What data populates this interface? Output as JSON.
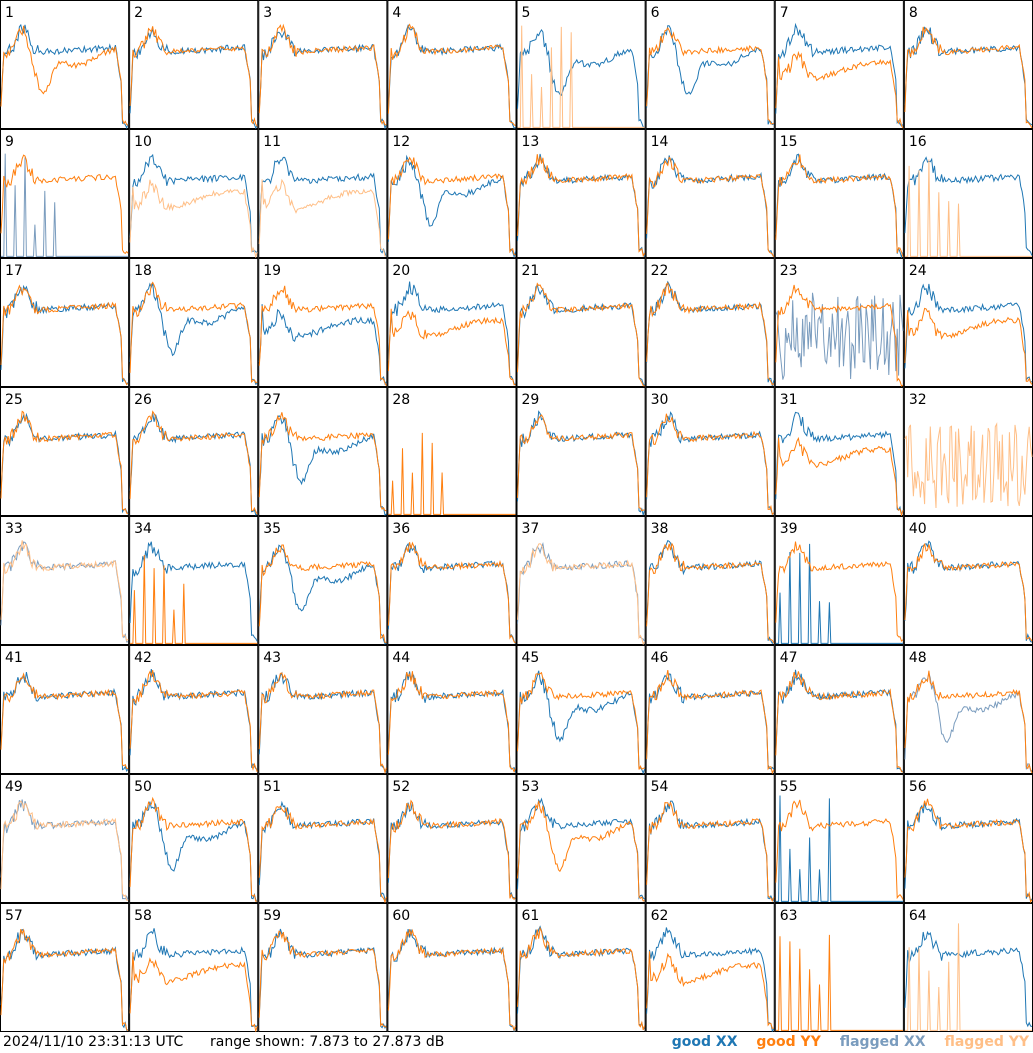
{
  "chart_data": {
    "type": "line",
    "grid": {
      "rows": 8,
      "cols": 8
    },
    "range_db": [
      7.873,
      27.873
    ],
    "panels": [
      {
        "id": "1",
        "xx": "good",
        "yy": "good",
        "shape": "spiky",
        "yy_shape": "dip"
      },
      {
        "id": "2",
        "xx": "good",
        "yy": "good",
        "shape": "normal",
        "yy_shape": "normal"
      },
      {
        "id": "3",
        "xx": "good",
        "yy": "good",
        "shape": "normal",
        "yy_shape": "normal"
      },
      {
        "id": "4",
        "xx": "good",
        "yy": "good",
        "shape": "normal",
        "yy_shape": "normal"
      },
      {
        "id": "5",
        "xx": "good",
        "yy": "flagged",
        "shape": "dip",
        "yy_shape": "spikes"
      },
      {
        "id": "6",
        "xx": "good",
        "yy": "good",
        "shape": "dip",
        "yy_shape": "normal"
      },
      {
        "id": "7",
        "xx": "good",
        "yy": "good",
        "shape": "normal",
        "yy_shape": "low"
      },
      {
        "id": "8",
        "xx": "good",
        "yy": "good",
        "shape": "normal",
        "yy_shape": "normal"
      },
      {
        "id": "9",
        "xx": "flagged",
        "yy": "good",
        "shape": "spikes",
        "yy_shape": "normal"
      },
      {
        "id": "10",
        "xx": "good",
        "yy": "flagged",
        "shape": "normal",
        "yy_shape": "low"
      },
      {
        "id": "11",
        "xx": "good",
        "yy": "flagged",
        "shape": "normal",
        "yy_shape": "low"
      },
      {
        "id": "12",
        "xx": "good",
        "yy": "good",
        "shape": "dip",
        "yy_shape": "normal"
      },
      {
        "id": "13",
        "xx": "good",
        "yy": "good",
        "shape": "normal",
        "yy_shape": "spiky"
      },
      {
        "id": "14",
        "xx": "good",
        "yy": "good",
        "shape": "normal",
        "yy_shape": "normal"
      },
      {
        "id": "15",
        "xx": "good",
        "yy": "good",
        "shape": "normal",
        "yy_shape": "normal"
      },
      {
        "id": "16",
        "xx": "good",
        "yy": "flagged",
        "shape": "normal",
        "yy_shape": "spikes"
      },
      {
        "id": "17",
        "xx": "good",
        "yy": "good",
        "shape": "normal",
        "yy_shape": "normal"
      },
      {
        "id": "18",
        "xx": "good",
        "yy": "good",
        "shape": "dip",
        "yy_shape": "normal"
      },
      {
        "id": "19",
        "xx": "good",
        "yy": "good",
        "shape": "low",
        "yy_shape": "normal"
      },
      {
        "id": "20",
        "xx": "good",
        "yy": "good",
        "shape": "normal",
        "yy_shape": "low"
      },
      {
        "id": "21",
        "xx": "good",
        "yy": "good",
        "shape": "normal",
        "yy_shape": "normal"
      },
      {
        "id": "22",
        "xx": "good",
        "yy": "good",
        "shape": "normal",
        "yy_shape": "normal"
      },
      {
        "id": "23",
        "xx": "flagged",
        "yy": "good",
        "shape": "noisy",
        "yy_shape": "normal"
      },
      {
        "id": "24",
        "xx": "good",
        "yy": "good",
        "shape": "normal",
        "yy_shape": "low"
      },
      {
        "id": "25",
        "xx": "good",
        "yy": "good",
        "shape": "normal",
        "yy_shape": "normal"
      },
      {
        "id": "26",
        "xx": "good",
        "yy": "good",
        "shape": "normal",
        "yy_shape": "normal"
      },
      {
        "id": "27",
        "xx": "good",
        "yy": "good",
        "shape": "dip",
        "yy_shape": "normal"
      },
      {
        "id": "28",
        "xx": "none",
        "yy": "good",
        "shape": "normal",
        "yy_shape": "spikes"
      },
      {
        "id": "29",
        "xx": "good",
        "yy": "good",
        "shape": "normal",
        "yy_shape": "normal"
      },
      {
        "id": "30",
        "xx": "good",
        "yy": "good",
        "shape": "normal",
        "yy_shape": "normal"
      },
      {
        "id": "31",
        "xx": "good",
        "yy": "good",
        "shape": "normal",
        "yy_shape": "low"
      },
      {
        "id": "32",
        "xx": "none",
        "yy": "flagged",
        "shape": "normal",
        "yy_shape": "noisy"
      },
      {
        "id": "33",
        "xx": "flagged",
        "yy": "flagged",
        "shape": "normal",
        "yy_shape": "normal"
      },
      {
        "id": "34",
        "xx": "good",
        "yy": "good",
        "shape": "normal",
        "yy_shape": "spikes"
      },
      {
        "id": "35",
        "xx": "good",
        "yy": "good",
        "shape": "dip",
        "yy_shape": "normal"
      },
      {
        "id": "36",
        "xx": "good",
        "yy": "good",
        "shape": "normal",
        "yy_shape": "normal"
      },
      {
        "id": "37",
        "xx": "flagged",
        "yy": "flagged",
        "shape": "normal",
        "yy_shape": "normal"
      },
      {
        "id": "38",
        "xx": "good",
        "yy": "good",
        "shape": "normal",
        "yy_shape": "normal"
      },
      {
        "id": "39",
        "xx": "good",
        "yy": "good",
        "shape": "spikes",
        "yy_shape": "normal"
      },
      {
        "id": "40",
        "xx": "good",
        "yy": "good",
        "shape": "normal",
        "yy_shape": "normal"
      },
      {
        "id": "41",
        "xx": "good",
        "yy": "good",
        "shape": "normal",
        "yy_shape": "normal"
      },
      {
        "id": "42",
        "xx": "good",
        "yy": "good",
        "shape": "normal",
        "yy_shape": "normal"
      },
      {
        "id": "43",
        "xx": "good",
        "yy": "good",
        "shape": "normal",
        "yy_shape": "normal"
      },
      {
        "id": "44",
        "xx": "good",
        "yy": "good",
        "shape": "normal",
        "yy_shape": "normal"
      },
      {
        "id": "45",
        "xx": "good",
        "yy": "good",
        "shape": "dip",
        "yy_shape": "normal"
      },
      {
        "id": "46",
        "xx": "good",
        "yy": "good",
        "shape": "normal",
        "yy_shape": "normal"
      },
      {
        "id": "47",
        "xx": "good",
        "yy": "good",
        "shape": "normal",
        "yy_shape": "normal"
      },
      {
        "id": "48",
        "xx": "flagged",
        "yy": "good",
        "shape": "dip",
        "yy_shape": "normal"
      },
      {
        "id": "49",
        "xx": "flagged",
        "yy": "flagged",
        "shape": "normal",
        "yy_shape": "normal"
      },
      {
        "id": "50",
        "xx": "good",
        "yy": "good",
        "shape": "dip",
        "yy_shape": "normal"
      },
      {
        "id": "51",
        "xx": "good",
        "yy": "good",
        "shape": "normal",
        "yy_shape": "normal"
      },
      {
        "id": "52",
        "xx": "good",
        "yy": "good",
        "shape": "normal",
        "yy_shape": "normal"
      },
      {
        "id": "53",
        "xx": "good",
        "yy": "good",
        "shape": "normal",
        "yy_shape": "dip"
      },
      {
        "id": "54",
        "xx": "good",
        "yy": "good",
        "shape": "normal",
        "yy_shape": "normal"
      },
      {
        "id": "55",
        "xx": "good",
        "yy": "good",
        "shape": "spikes",
        "yy_shape": "normal"
      },
      {
        "id": "56",
        "xx": "good",
        "yy": "good",
        "shape": "normal",
        "yy_shape": "normal"
      },
      {
        "id": "57",
        "xx": "good",
        "yy": "good",
        "shape": "normal",
        "yy_shape": "normal"
      },
      {
        "id": "58",
        "xx": "good",
        "yy": "good",
        "shape": "normal",
        "yy_shape": "low"
      },
      {
        "id": "59",
        "xx": "good",
        "yy": "good",
        "shape": "normal",
        "yy_shape": "normal"
      },
      {
        "id": "60",
        "xx": "good",
        "yy": "good",
        "shape": "normal",
        "yy_shape": "normal"
      },
      {
        "id": "61",
        "xx": "good",
        "yy": "good",
        "shape": "spiky",
        "yy_shape": "normal"
      },
      {
        "id": "62",
        "xx": "good",
        "yy": "good",
        "shape": "normal",
        "yy_shape": "low"
      },
      {
        "id": "63",
        "xx": "none",
        "yy": "good",
        "shape": "normal",
        "yy_shape": "spikes"
      },
      {
        "id": "64",
        "xx": "good",
        "yy": "flagged",
        "shape": "normal",
        "yy_shape": "spikes"
      }
    ],
    "legend": [
      "good XX",
      "good YY",
      "flagged XX",
      "flagged YY"
    ],
    "colors": {
      "good_xx": "#1f77b4",
      "good_yy": "#ff7f0e",
      "flagged_xx": "#7a9cbe",
      "flagged_yy": "#ffbf87"
    }
  },
  "footer": {
    "timestamp": "2024/11/10 23:31:13 UTC",
    "range_text": "range shown: 7.873 to 27.873 dB"
  },
  "legend": {
    "good_xx": "good XX",
    "good_yy": "good YY",
    "flagged_xx": "flagged XX",
    "flagged_yy": "flagged YY"
  }
}
